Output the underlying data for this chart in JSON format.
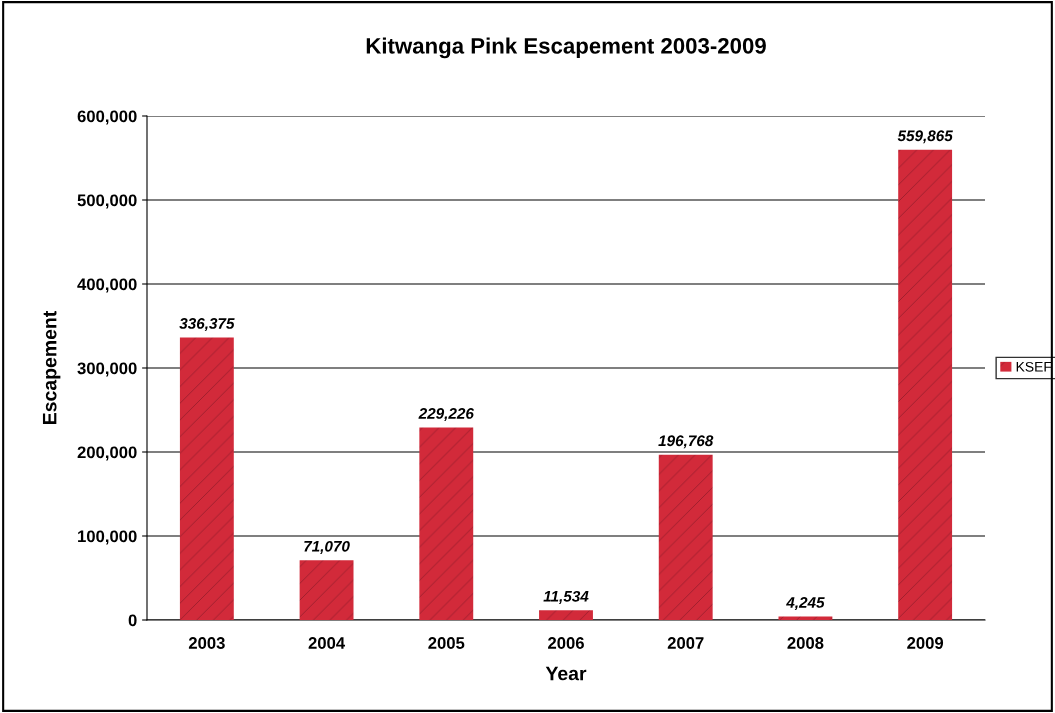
{
  "chart_data": {
    "type": "bar",
    "title": "Kitwanga Pink Escapement 2003-2009",
    "xlabel": "Year",
    "ylabel": "Escapement",
    "categories": [
      "2003",
      "2004",
      "2005",
      "2006",
      "2007",
      "2008",
      "2009"
    ],
    "series": [
      {
        "name": "KSEF",
        "color": "#d22a3a",
        "values": [
          336375,
          71070,
          229226,
          11534,
          196768,
          4245,
          559865
        ]
      }
    ],
    "value_labels": [
      "336,375",
      "71,070",
      "229,226",
      "11,534",
      "196,768",
      "4,245",
      "559,865"
    ],
    "ylim": [
      0,
      600000
    ],
    "yticks": [
      {
        "value": 0,
        "label": "0"
      },
      {
        "value": 100000,
        "label": "100,000"
      },
      {
        "value": 200000,
        "label": "200,000"
      },
      {
        "value": 300000,
        "label": "300,000"
      },
      {
        "value": 400000,
        "label": "400,000"
      },
      {
        "value": 500000,
        "label": "500,000"
      },
      {
        "value": 600000,
        "label": "600,000"
      }
    ],
    "grid": "y",
    "legend": "right"
  }
}
